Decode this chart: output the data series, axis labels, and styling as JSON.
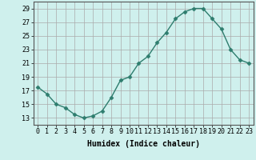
{
  "x": [
    0,
    1,
    2,
    3,
    4,
    5,
    6,
    7,
    8,
    9,
    10,
    11,
    12,
    13,
    14,
    15,
    16,
    17,
    18,
    19,
    20,
    21,
    22,
    23
  ],
  "y": [
    17.5,
    16.5,
    15.0,
    14.5,
    13.5,
    13.0,
    13.3,
    14.0,
    16.0,
    18.5,
    19.0,
    21.0,
    22.0,
    24.0,
    25.5,
    27.5,
    28.5,
    29.0,
    29.0,
    27.5,
    26.0,
    23.0,
    21.5,
    21.0
  ],
  "line_color": "#2e7d6e",
  "marker": "D",
  "marker_size": 2.5,
  "xlabel": "Humidex (Indice chaleur)",
  "xlim": [
    -0.5,
    23.5
  ],
  "ylim": [
    12,
    30
  ],
  "yticks": [
    13,
    15,
    17,
    19,
    21,
    23,
    25,
    27,
    29
  ],
  "xticks": [
    0,
    1,
    2,
    3,
    4,
    5,
    6,
    7,
    8,
    9,
    10,
    11,
    12,
    13,
    14,
    15,
    16,
    17,
    18,
    19,
    20,
    21,
    22,
    23
  ],
  "bg_color": "#cff0ed",
  "grid_color": "#aaaaaa",
  "tick_font_size": 6,
  "xlabel_font_size": 7
}
